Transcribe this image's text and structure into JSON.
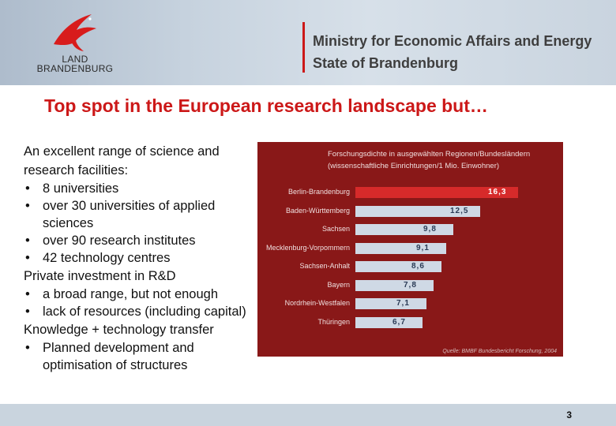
{
  "header": {
    "logo_line1": "LAND",
    "logo_line2": "BRANDENBURG",
    "title_line1": "Ministry for Economic Affairs and Energy",
    "title_line2": "State of Brandenburg"
  },
  "slide": {
    "title": "Top spot in the European research landscape but…",
    "sections": [
      {
        "heading": "An excellent range of science and research facilities:",
        "bullets": [
          "8 universities",
          "over 30 universities of applied sciences",
          "over 90 research institutes",
          "42 technology centres"
        ]
      },
      {
        "heading": "Private investment in R&D",
        "bullets": [
          "a broad range, but not enough",
          "lack of resources (including capital)"
        ]
      },
      {
        "heading": "Knowledge + technology transfer",
        "bullets": [
          "Planned development and optimisation of structures"
        ]
      }
    ]
  },
  "chart_data": {
    "type": "bar",
    "orientation": "horizontal",
    "title_line1": "Forschungsdichte in ausgewählten Regionen/Bundesländern",
    "title_line2": "(wissenschaftliche Einrichtungen/1 Mio. Einwohner)",
    "categories": [
      "Berlin-Brandenburg",
      "Baden-Württemberg",
      "Sachsen",
      "Mecklenburg-Vorpommern",
      "Sachsen-Anhalt",
      "Bayern",
      "Nordrhein-Westfalen",
      "Thüringen"
    ],
    "values": [
      16.3,
      12.5,
      9.8,
      9.1,
      8.6,
      7.8,
      7.1,
      6.7
    ],
    "value_labels": [
      "16,3",
      "12,5",
      "9,8",
      "9,1",
      "8,6",
      "7,8",
      "7,1",
      "6,7"
    ],
    "highlight_index": 0,
    "source": "Quelle: BMBF Bundesbericht Forschung, 2004",
    "colors": {
      "background": "#891818",
      "bar": "#cfd9e5",
      "highlight": "#d62a2a"
    },
    "xlim": [
      0,
      16.3
    ]
  },
  "footer": {
    "page_number": "3"
  }
}
